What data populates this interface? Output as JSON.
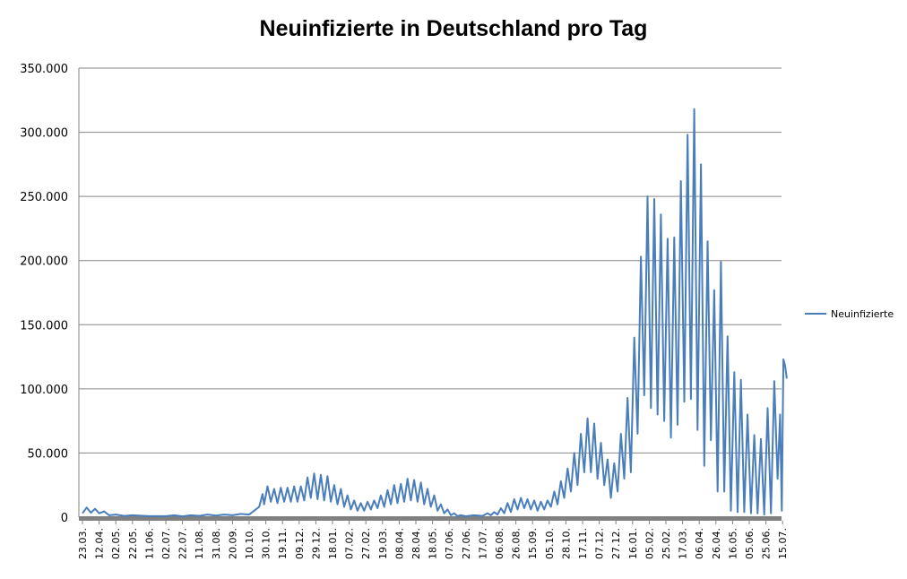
{
  "chart_data": {
    "type": "line",
    "title": "Neuinfizierte in Deutschland pro Tag",
    "xlabel": "",
    "ylabel": "",
    "ylim": [
      0,
      350000
    ],
    "y_ticks": [
      "0",
      "50.000",
      "100.000",
      "150.000",
      "200.000",
      "250.000",
      "300.000",
      "350.000"
    ],
    "x_tick_labels": [
      "23.03.",
      "12.04.",
      "02.05.",
      "22.05.",
      "11.06.",
      "02.07.",
      "22.07.",
      "11.08.",
      "31.08.",
      "20.09.",
      "10.10.",
      "30.10.",
      "19.11.",
      "09.12.",
      "29.12.",
      "18.01.",
      "07.02.",
      "27.02.",
      "19.03.",
      "08.04.",
      "28.04.",
      "18.05.",
      "07.06.",
      "27.06.",
      "17.07.",
      "06.08.",
      "26.08.",
      "15.09.",
      "05.10.",
      "28.10.",
      "17.11.",
      "07.12.",
      "27.12.",
      "16.01.",
      "05.02.",
      "25.02.",
      "17.03.",
      "06.04.",
      "26.04.",
      "16.05.",
      "05.06.",
      "25.06.",
      "15.07."
    ],
    "grid": true,
    "legend_position": "right",
    "colors": {
      "line": "#4a7ebb",
      "grid": "#868686",
      "baseline": "#808080"
    },
    "series": [
      {
        "name": "Neuinfizierte",
        "note_points": "approximate weekly peaks and troughs [tick_index, value]",
        "points": [
          [
            0,
            3000
          ],
          [
            0.25,
            7500
          ],
          [
            0.5,
            3500
          ],
          [
            0.75,
            6500
          ],
          [
            1,
            3000
          ],
          [
            1.3,
            4500
          ],
          [
            1.6,
            1500
          ],
          [
            2,
            2000
          ],
          [
            2.5,
            1000
          ],
          [
            3,
            1500
          ],
          [
            4,
            800
          ],
          [
            5,
            800
          ],
          [
            5.5,
            1500
          ],
          [
            6,
            600
          ],
          [
            6.5,
            1500
          ],
          [
            7,
            1000
          ],
          [
            7.5,
            2000
          ],
          [
            8,
            1200
          ],
          [
            8.5,
            2000
          ],
          [
            9,
            1500
          ],
          [
            9.5,
            2500
          ],
          [
            10,
            2000
          ],
          [
            10.3,
            5000
          ],
          [
            10.6,
            8000
          ],
          [
            10.8,
            18000
          ],
          [
            10.9,
            10000
          ],
          [
            11.1,
            24000
          ],
          [
            11.3,
            12000
          ],
          [
            11.5,
            22000
          ],
          [
            11.7,
            11000
          ],
          [
            11.9,
            23000
          ],
          [
            12.1,
            12000
          ],
          [
            12.3,
            23000
          ],
          [
            12.5,
            12000
          ],
          [
            12.7,
            24000
          ],
          [
            12.9,
            12000
          ],
          [
            13.1,
            24000
          ],
          [
            13.3,
            13000
          ],
          [
            13.5,
            31000
          ],
          [
            13.7,
            15000
          ],
          [
            13.9,
            34000
          ],
          [
            14.1,
            14000
          ],
          [
            14.3,
            33000
          ],
          [
            14.5,
            13000
          ],
          [
            14.7,
            32000
          ],
          [
            14.9,
            12000
          ],
          [
            15.1,
            25000
          ],
          [
            15.3,
            10000
          ],
          [
            15.5,
            22000
          ],
          [
            15.7,
            8000
          ],
          [
            15.9,
            17000
          ],
          [
            16.1,
            6000
          ],
          [
            16.3,
            13000
          ],
          [
            16.5,
            5000
          ],
          [
            16.7,
            11000
          ],
          [
            16.9,
            5000
          ],
          [
            17.1,
            12000
          ],
          [
            17.3,
            6000
          ],
          [
            17.5,
            13000
          ],
          [
            17.7,
            7000
          ],
          [
            17.9,
            17000
          ],
          [
            18.1,
            8000
          ],
          [
            18.3,
            21000
          ],
          [
            18.5,
            10000
          ],
          [
            18.7,
            25000
          ],
          [
            18.9,
            11000
          ],
          [
            19.1,
            26000
          ],
          [
            19.3,
            12000
          ],
          [
            19.5,
            30000
          ],
          [
            19.7,
            13000
          ],
          [
            19.9,
            29000
          ],
          [
            20.1,
            12000
          ],
          [
            20.3,
            27000
          ],
          [
            20.5,
            10000
          ],
          [
            20.7,
            22000
          ],
          [
            20.9,
            8000
          ],
          [
            21.1,
            17000
          ],
          [
            21.3,
            5000
          ],
          [
            21.5,
            10000
          ],
          [
            21.7,
            3000
          ],
          [
            21.9,
            6000
          ],
          [
            22.1,
            1500
          ],
          [
            22.3,
            3000
          ],
          [
            22.5,
            800
          ],
          [
            22.7,
            1500
          ],
          [
            23,
            700
          ],
          [
            23.5,
            1500
          ],
          [
            24,
            1000
          ],
          [
            24.3,
            3000
          ],
          [
            24.5,
            1500
          ],
          [
            24.7,
            4000
          ],
          [
            24.9,
            2000
          ],
          [
            25.1,
            7000
          ],
          [
            25.3,
            3000
          ],
          [
            25.5,
            11000
          ],
          [
            25.7,
            4000
          ],
          [
            25.9,
            14000
          ],
          [
            26.1,
            6000
          ],
          [
            26.3,
            15000
          ],
          [
            26.5,
            7000
          ],
          [
            26.7,
            14000
          ],
          [
            26.9,
            6000
          ],
          [
            27.1,
            13000
          ],
          [
            27.3,
            5000
          ],
          [
            27.5,
            12000
          ],
          [
            27.7,
            6000
          ],
          [
            27.9,
            13000
          ],
          [
            28.1,
            8000
          ],
          [
            28.3,
            20000
          ],
          [
            28.5,
            10000
          ],
          [
            28.7,
            28000
          ],
          [
            28.9,
            15000
          ],
          [
            29.1,
            38000
          ],
          [
            29.3,
            20000
          ],
          [
            29.5,
            50000
          ],
          [
            29.7,
            25000
          ],
          [
            29.9,
            65000
          ],
          [
            30.1,
            35000
          ],
          [
            30.3,
            77000
          ],
          [
            30.5,
            35000
          ],
          [
            30.7,
            73000
          ],
          [
            30.9,
            30000
          ],
          [
            31.1,
            58000
          ],
          [
            31.3,
            25000
          ],
          [
            31.5,
            45000
          ],
          [
            31.7,
            15000
          ],
          [
            31.9,
            42000
          ],
          [
            32.1,
            20000
          ],
          [
            32.3,
            65000
          ],
          [
            32.5,
            30000
          ],
          [
            32.7,
            93000
          ],
          [
            32.9,
            35000
          ],
          [
            33.1,
            140000
          ],
          [
            33.3,
            65000
          ],
          [
            33.5,
            203000
          ],
          [
            33.7,
            95000
          ],
          [
            33.9,
            250000
          ],
          [
            34.1,
            85000
          ],
          [
            34.3,
            248000
          ],
          [
            34.5,
            80000
          ],
          [
            34.7,
            236000
          ],
          [
            34.9,
            75000
          ],
          [
            35.1,
            217000
          ],
          [
            35.3,
            62000
          ],
          [
            35.5,
            218000
          ],
          [
            35.7,
            72000
          ],
          [
            35.9,
            262000
          ],
          [
            36.1,
            90000
          ],
          [
            36.3,
            298000
          ],
          [
            36.5,
            92000
          ],
          [
            36.7,
            318000
          ],
          [
            36.9,
            68000
          ],
          [
            37.1,
            275000
          ],
          [
            37.3,
            40000
          ],
          [
            37.5,
            215000
          ],
          [
            37.7,
            60000
          ],
          [
            37.9,
            177000
          ],
          [
            38.1,
            20000
          ],
          [
            38.3,
            199000
          ],
          [
            38.5,
            20000
          ],
          [
            38.7,
            141000
          ],
          [
            38.9,
            5000
          ],
          [
            39.1,
            113000
          ],
          [
            39.3,
            4000
          ],
          [
            39.5,
            107000
          ],
          [
            39.7,
            4000
          ],
          [
            39.9,
            80000
          ],
          [
            40.1,
            3000
          ],
          [
            40.3,
            64000
          ],
          [
            40.5,
            3000
          ],
          [
            40.7,
            61000
          ],
          [
            40.9,
            2000
          ],
          [
            41.1,
            85000
          ],
          [
            41.3,
            3000
          ],
          [
            41.5,
            106000
          ],
          [
            41.7,
            30000
          ],
          [
            41.85,
            80000
          ],
          [
            41.95,
            5000
          ],
          [
            42.05,
            123000
          ],
          [
            42.15,
            118000
          ],
          [
            42.25,
            108000
          ]
        ]
      }
    ]
  }
}
